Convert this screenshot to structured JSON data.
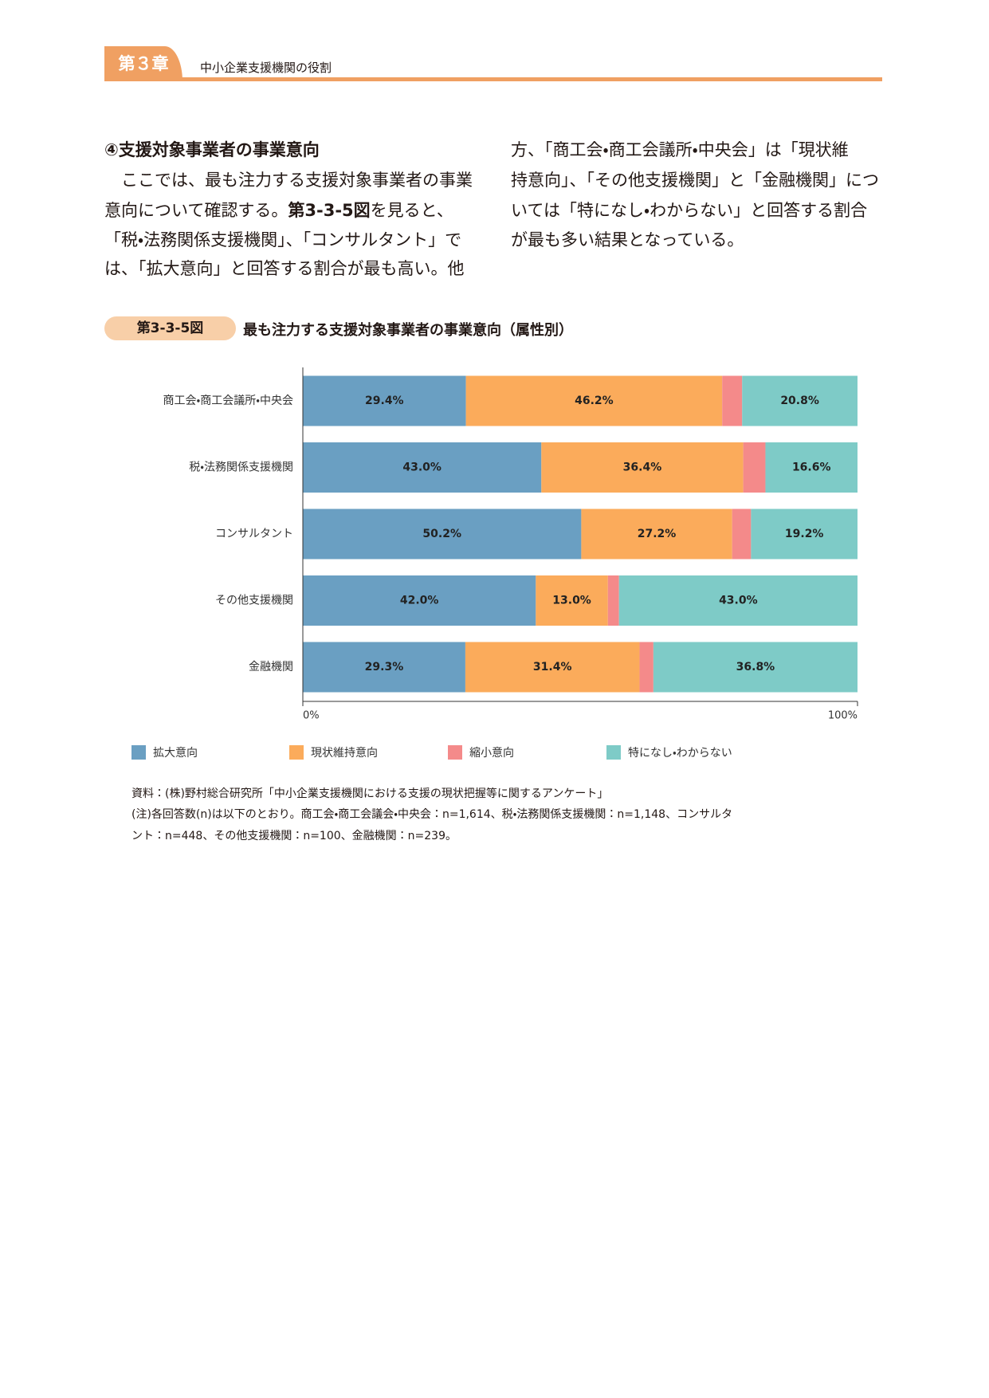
{
  "header": {
    "chapter": "第３章",
    "title": "中小企業支援機関の役割"
  },
  "section": {
    "heading": "④支援対象事業者の事業意向",
    "left": [
      "ここでは、最も注力する支援対象事業者の事業",
      [
        "意向について確認する。",
        "第3-3-5図",
        "を見ると、"
      ],
      "「税・法務関係支援機関」、「コンサルタント」で",
      "は、「拡大意向」と回答する割合が最も高い。他"
    ],
    "right": [
      "方、「商工会・商工会議所・中央会」は「現状維",
      "持意向」、「その他支援機関」と「金融機関」につ",
      "いては「特になし・わからない」と回答する割合",
      "が最も多い結果となっている。"
    ]
  },
  "figure": {
    "label": "第3-3-5図",
    "source": "資料：(株)野村総合研究所「中小企業支援機関における支援の現状把握等に関するアンケート」",
    "note": [
      "(注)各回答数(n)は以下のとおり。商工会・商工会議会・中央会：n=1,614、税・法務関係支援機関：n=1,148、コンサルタ",
      "ント：n=448、その他支援機関：n=100、金融機関：n=239。"
    ]
  },
  "chart_data": {
    "type": "bar",
    "orientation": "horizontal",
    "stacked": true,
    "title": "最も注力する支援対象事業者の事業意向（属性別）",
    "categories": [
      "商工会・商工会議所・中央会",
      "税・法務関係支援機関",
      "コンサルタント",
      "その他支援機関",
      "金融機関"
    ],
    "series": [
      {
        "name": "拡大意向",
        "color": "#6a9fc2",
        "values": [
          29.4,
          43.0,
          50.2,
          42.0,
          29.3
        ],
        "value_labels": [
          "29.4%",
          "43.0%",
          "50.2%",
          "42.0%",
          "29.3%"
        ]
      },
      {
        "name": "現状維持意向",
        "color": "#fbab5b",
        "values": [
          46.2,
          36.4,
          27.2,
          13.0,
          31.4
        ],
        "value_labels": [
          "46.2%",
          "36.4%",
          "27.2%",
          "13.0%",
          "31.4%"
        ]
      },
      {
        "name": "縮小意向",
        "color": "#f48a8a",
        "values": [
          3.6,
          4.0,
          3.4,
          2.0,
          2.5
        ]
      },
      {
        "name": "特になし・わからない",
        "color": "#7ecbc7",
        "values": [
          20.8,
          16.6,
          19.2,
          43.0,
          36.8
        ],
        "value_labels": [
          "20.8%",
          "16.6%",
          "19.2%",
          "43.0%",
          "36.8%"
        ]
      }
    ],
    "xlim": [
      0,
      100
    ],
    "xticks": [
      {
        "value": 0,
        "label": "0%"
      },
      {
        "value": 100,
        "label": "100%"
      }
    ],
    "legend": "bottom"
  }
}
